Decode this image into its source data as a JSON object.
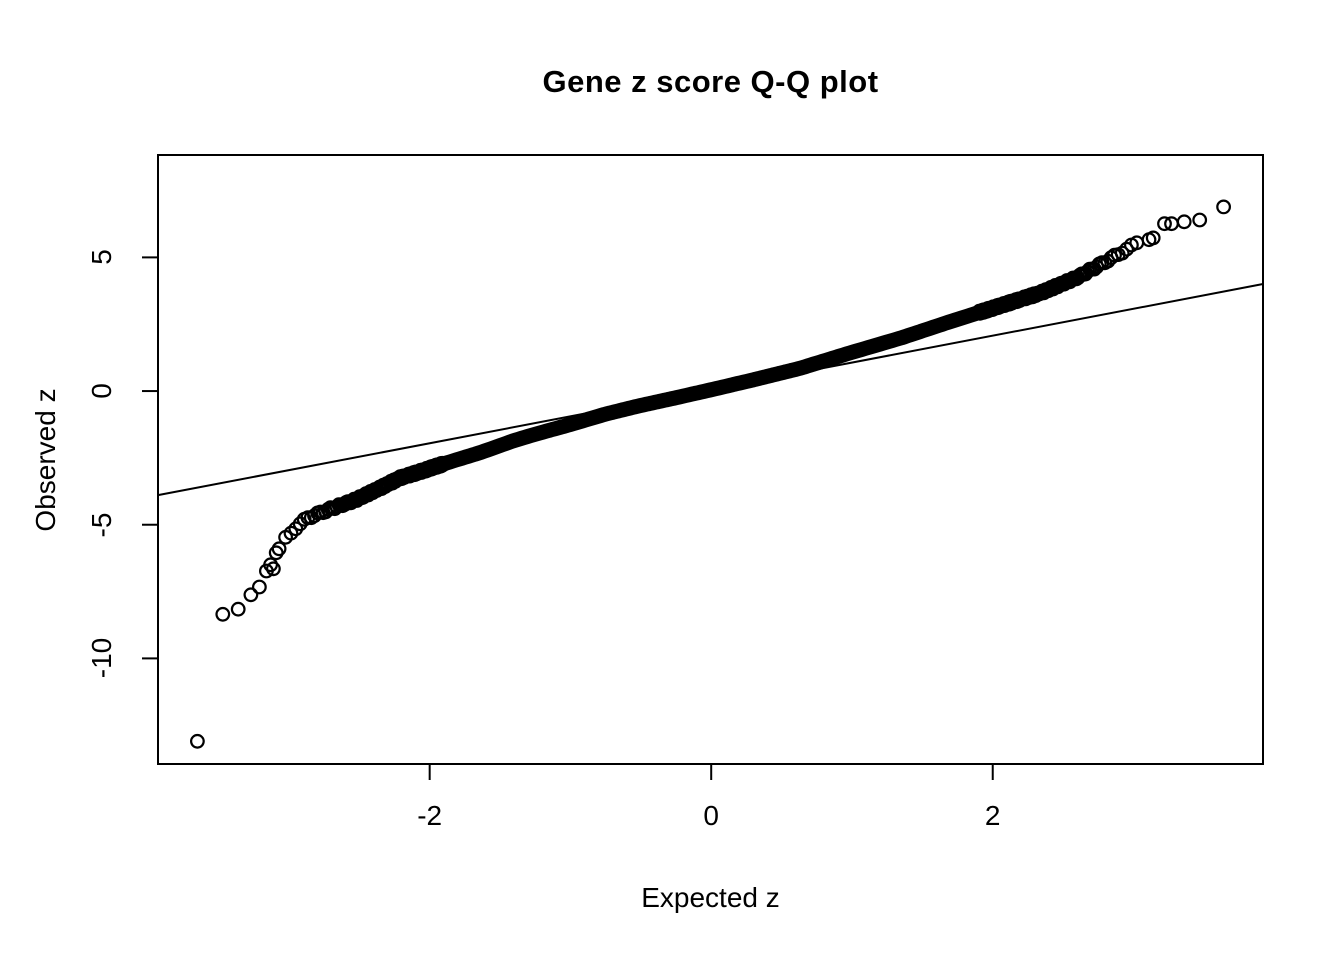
{
  "chart_data": {
    "type": "scatter",
    "subtype": "normal-qq-plot",
    "title": "Gene z score Q-Q plot",
    "xlabel": "Expected z",
    "ylabel": "Observed z",
    "x_ticks": [
      -2,
      0,
      2
    ],
    "x_tick_labels": [
      "-2",
      "0",
      "2"
    ],
    "y_ticks": [
      -10,
      -5,
      0,
      5
    ],
    "y_tick_labels": [
      "-10",
      "-5",
      "0",
      "5"
    ],
    "xlim": [
      -3.93,
      3.92
    ],
    "ylim": [
      -13.95,
      8.83
    ],
    "grid": false,
    "legend": "none",
    "marker": {
      "shape": "open-circle",
      "color": "#000000",
      "radius_px": 6.3,
      "stroke_px": 2.2
    },
    "reference_line": {
      "slope": 1.006,
      "intercept": 0.06,
      "color": "#000000"
    },
    "n_points_estimate": 6000,
    "curve_anchors": [
      [
        -3.06,
        -5.72
      ],
      [
        -2.95,
        -5.1
      ],
      [
        -2.87,
        -4.75
      ],
      [
        -2.7,
        -4.4
      ],
      [
        -2.53,
        -4.08
      ],
      [
        -2.35,
        -3.62
      ],
      [
        -2.21,
        -3.25
      ],
      [
        -2.07,
        -3.02
      ],
      [
        -1.9,
        -2.72
      ],
      [
        -1.64,
        -2.3
      ],
      [
        -1.4,
        -1.85
      ],
      [
        -1.22,
        -1.57
      ],
      [
        -1.0,
        -1.25
      ],
      [
        -0.75,
        -0.86
      ],
      [
        -0.51,
        -0.55
      ],
      [
        -0.25,
        -0.25
      ],
      [
        0.0,
        0.05
      ],
      [
        0.3,
        0.42
      ],
      [
        0.63,
        0.85
      ],
      [
        1.0,
        1.45
      ],
      [
        1.35,
        1.99
      ],
      [
        1.7,
        2.6
      ],
      [
        2.0,
        3.1
      ],
      [
        2.34,
        3.67
      ],
      [
        2.6,
        4.25
      ],
      [
        2.86,
        5.02
      ],
      [
        3.06,
        5.65
      ]
    ],
    "low_tail_points": [
      [
        -3.65,
        -13.1
      ],
      [
        -3.47,
        -8.35
      ],
      [
        -3.36,
        -8.16
      ],
      [
        -3.27,
        -7.62
      ],
      [
        -3.21,
        -7.33
      ],
      [
        -3.16,
        -6.73
      ],
      [
        -3.11,
        -6.65
      ],
      [
        -3.13,
        -6.5
      ],
      [
        -3.09,
        -6.05
      ],
      [
        -3.07,
        -5.9
      ]
    ],
    "high_tail_points": [
      [
        3.64,
        6.89
      ],
      [
        3.47,
        6.4
      ],
      [
        3.36,
        6.33
      ],
      [
        3.27,
        6.26
      ],
      [
        3.22,
        6.26
      ],
      [
        3.14,
        5.73
      ],
      [
        3.11,
        5.66
      ]
    ],
    "axis_color": "#000000",
    "background": "#ffffff"
  }
}
